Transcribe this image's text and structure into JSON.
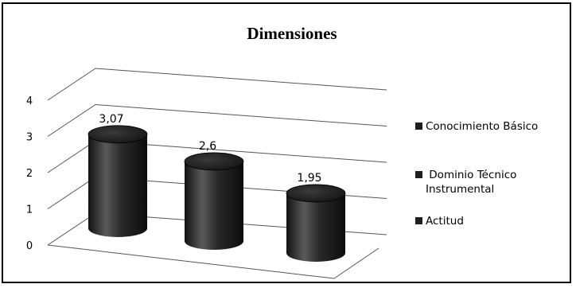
{
  "chart_data": {
    "type": "bar",
    "title": "Dimensiones",
    "categories": [
      "Conocimiento Básico",
      "Dominio Técnico Instrumental",
      "Actitud"
    ],
    "values": [
      3.07,
      2.6,
      1.95
    ],
    "value_labels": [
      "3,07",
      "2,6",
      "1,95"
    ],
    "y_ticks": [
      "0",
      "1",
      "2",
      "3",
      "4"
    ],
    "ylim": [
      0,
      4
    ],
    "grid": true,
    "legend_position": "right",
    "legend_labels": [
      " Conocimiento Básico",
      " Dominio Técnico\nInstrumental",
      " Actitud"
    ],
    "bar_style": "3d-cylinder",
    "colors": {
      "bar": "#1e1e1e",
      "bar_highlight": "#5a5a5a",
      "grid": "#555555"
    }
  }
}
